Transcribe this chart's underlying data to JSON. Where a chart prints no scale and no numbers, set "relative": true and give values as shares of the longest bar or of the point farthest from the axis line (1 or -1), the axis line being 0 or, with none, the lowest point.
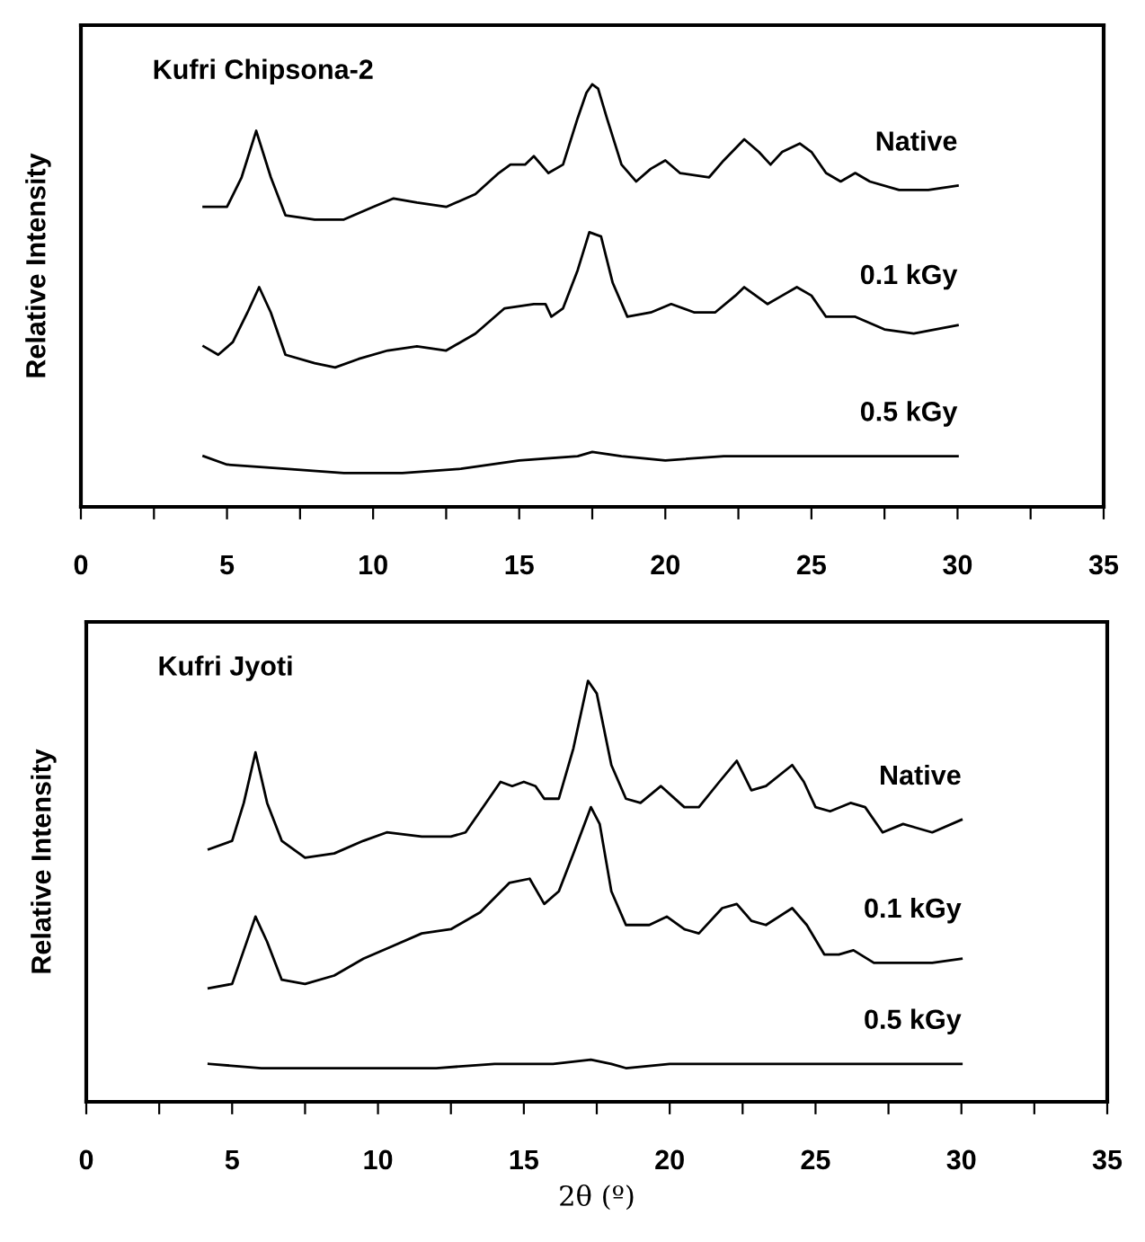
{
  "chart_data": [
    {
      "type": "line",
      "title": "Kufri Chipsona-2",
      "ylabel": "Relative Intensity",
      "relative": true,
      "tick_labels": "x",
      "line_style": "solid",
      "marker": "none",
      "xlim": [
        0,
        35
      ],
      "xticks": [
        0,
        {
          "value": 2.5,
          "label": null
        },
        5,
        {
          "value": 7.5,
          "label": null
        },
        10,
        {
          "value": 12.5,
          "label": null
        },
        15,
        {
          "value": 17.5,
          "label": null
        },
        20,
        {
          "value": 22.5,
          "label": null
        },
        25,
        {
          "value": 27.5,
          "label": null
        },
        30,
        {
          "value": 32.5,
          "label": null
        },
        35
      ],
      "series": [
        {
          "name": "Native",
          "color": "#000000",
          "x": [
            4.2,
            5,
            5.5,
            6.0,
            6.5,
            7.0,
            8,
            9,
            10,
            10.7,
            11.5,
            12.5,
            13.5,
            14.3,
            14.7,
            15.2,
            15.5,
            16,
            16.5,
            17,
            17.3,
            17.5,
            17.7,
            18,
            18.5,
            19,
            19.5,
            20,
            20.5,
            21.5,
            22,
            22.7,
            23.2,
            23.6,
            24,
            24.6,
            25,
            25.5,
            26,
            26.5,
            27,
            28,
            29,
            30
          ],
          "values": [
            0.71,
            0.71,
            0.78,
            0.89,
            0.78,
            0.69,
            0.68,
            0.68,
            0.71,
            0.73,
            0.72,
            0.71,
            0.74,
            0.79,
            0.81,
            0.81,
            0.83,
            0.79,
            0.81,
            0.92,
            0.98,
            1.0,
            0.99,
            0.92,
            0.81,
            0.77,
            0.8,
            0.82,
            0.79,
            0.78,
            0.82,
            0.87,
            0.84,
            0.81,
            0.84,
            0.86,
            0.84,
            0.79,
            0.77,
            0.79,
            0.77,
            0.75,
            0.75,
            0.76
          ]
        },
        {
          "name": "0.1 kGy",
          "color": "#000000",
          "x": [
            4.2,
            4.7,
            5.2,
            5.7,
            6.1,
            6.5,
            7,
            8,
            8.7,
            9.5,
            10.5,
            11.5,
            12.5,
            13.5,
            14.5,
            15.5,
            15.9,
            16.1,
            16.5,
            17,
            17.4,
            17.8,
            18.2,
            18.7,
            19.5,
            20.2,
            21,
            21.7,
            22.4,
            22.7,
            23.5,
            24,
            24.5,
            25,
            25.5,
            26.5,
            27.5,
            28.5,
            30
          ],
          "values": [
            0.38,
            0.36,
            0.39,
            0.46,
            0.52,
            0.46,
            0.36,
            0.34,
            0.33,
            0.35,
            0.37,
            0.38,
            0.37,
            0.41,
            0.47,
            0.48,
            0.48,
            0.45,
            0.47,
            0.56,
            0.65,
            0.64,
            0.53,
            0.45,
            0.46,
            0.48,
            0.46,
            0.46,
            0.5,
            0.52,
            0.48,
            0.5,
            0.52,
            0.5,
            0.45,
            0.45,
            0.42,
            0.41,
            0.43
          ]
        },
        {
          "name": "0.5 kGy",
          "color": "#000000",
          "x": [
            4.2,
            5,
            7,
            9,
            11,
            13,
            15,
            17,
            17.5,
            18.5,
            20,
            22,
            24,
            26,
            28,
            30
          ],
          "values": [
            0.12,
            0.1,
            0.09,
            0.08,
            0.08,
            0.09,
            0.11,
            0.12,
            0.13,
            0.12,
            0.11,
            0.12,
            0.12,
            0.12,
            0.12,
            0.12
          ]
        }
      ]
    },
    {
      "type": "line",
      "title": "Kufri Jyoti",
      "ylabel": "Relative Intensity",
      "xlabel": "2θ (º)",
      "relative": true,
      "tick_labels": "x",
      "line_style": "solid",
      "marker": "none",
      "xlim": [
        0,
        35
      ],
      "xticks": [
        0,
        {
          "value": 2.5,
          "label": null
        },
        5,
        {
          "value": 7.5,
          "label": null
        },
        10,
        {
          "value": 12.5,
          "label": null
        },
        15,
        {
          "value": 17.5,
          "label": null
        },
        20,
        {
          "value": 22.5,
          "label": null
        },
        25,
        {
          "value": 27.5,
          "label": null
        },
        30,
        {
          "value": 32.5,
          "label": null
        },
        35
      ],
      "series": [
        {
          "name": "Native",
          "color": "#000000",
          "x": [
            4.2,
            5,
            5.4,
            5.8,
            6.2,
            6.7,
            7.5,
            8.5,
            9.5,
            10.3,
            11.5,
            12.5,
            13,
            13.7,
            14.2,
            14.6,
            15,
            15.4,
            15.7,
            16.2,
            16.7,
            17.2,
            17.5,
            18,
            18.5,
            19,
            19.7,
            20.5,
            21,
            21.7,
            22.3,
            22.8,
            23.3,
            24.2,
            24.6,
            25,
            25.5,
            26.2,
            26.7,
            27.3,
            28,
            29,
            30
          ],
          "values": [
            0.6,
            0.62,
            0.71,
            0.83,
            0.71,
            0.62,
            0.58,
            0.59,
            0.62,
            0.64,
            0.63,
            0.63,
            0.64,
            0.71,
            0.76,
            0.75,
            0.76,
            0.75,
            0.72,
            0.72,
            0.84,
            1.0,
            0.97,
            0.8,
            0.72,
            0.71,
            0.75,
            0.7,
            0.7,
            0.76,
            0.81,
            0.74,
            0.75,
            0.8,
            0.76,
            0.7,
            0.69,
            0.71,
            0.7,
            0.64,
            0.66,
            0.64,
            0.67
          ]
        },
        {
          "name": "0.1 kGy",
          "color": "#000000",
          "x": [
            4.2,
            5,
            5.4,
            5.8,
            6.2,
            6.7,
            7.5,
            8.5,
            9.5,
            10.5,
            11.5,
            12.5,
            13.5,
            14.5,
            15.2,
            15.7,
            16.2,
            16.7,
            17.3,
            17.6,
            18,
            18.5,
            19.3,
            19.9,
            20.5,
            21,
            21.8,
            22.3,
            22.8,
            23.3,
            24.2,
            24.7,
            25.3,
            25.8,
            26.3,
            27,
            28,
            29,
            30
          ],
          "values": [
            0.27,
            0.28,
            0.36,
            0.44,
            0.38,
            0.29,
            0.28,
            0.3,
            0.34,
            0.37,
            0.4,
            0.41,
            0.45,
            0.52,
            0.53,
            0.47,
            0.5,
            0.59,
            0.7,
            0.66,
            0.5,
            0.42,
            0.42,
            0.44,
            0.41,
            0.4,
            0.46,
            0.47,
            0.43,
            0.42,
            0.46,
            0.42,
            0.35,
            0.35,
            0.36,
            0.33,
            0.33,
            0.33,
            0.34
          ]
        },
        {
          "name": "0.5 kGy",
          "color": "#000000",
          "x": [
            4.2,
            6,
            8,
            10,
            12,
            14,
            16,
            17.3,
            18,
            18.5,
            20,
            22,
            24,
            26,
            28,
            30
          ],
          "values": [
            0.09,
            0.08,
            0.08,
            0.08,
            0.08,
            0.09,
            0.09,
            0.1,
            0.09,
            0.08,
            0.09,
            0.09,
            0.09,
            0.09,
            0.09,
            0.09
          ]
        }
      ]
    }
  ]
}
